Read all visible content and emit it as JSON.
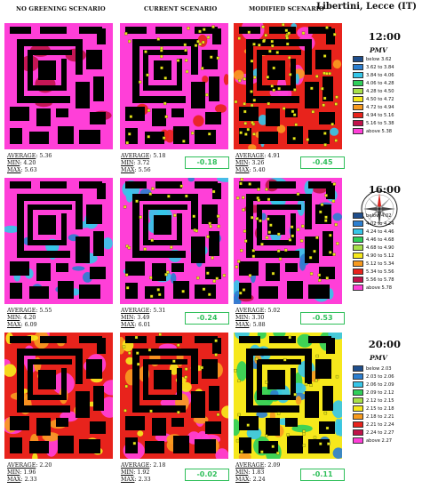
{
  "header": {
    "site": "Libertini, Lecce (IT)",
    "columns": [
      "NO GREENING SCENARIO",
      "CURRENT SCENARIO",
      "MODIFIED SCENARIO"
    ]
  },
  "labels": {
    "average": "AVERAGE",
    "min": "MIN",
    "max": "MAX",
    "pmv": "PMV"
  },
  "rows": [
    {
      "time": "12:00",
      "panels": [
        {
          "average": "5.36",
          "min": "4.20",
          "max": "5.63"
        },
        {
          "average": "5.18",
          "min": "3.72",
          "max": "5.56",
          "delta": "-0.18"
        },
        {
          "average": "4.91",
          "min": "3.26",
          "max": "5.40",
          "delta": "-0.45"
        }
      ],
      "legend": [
        {
          "label": "below 3.62",
          "color": "#1f4e8c"
        },
        {
          "label": "3.62 to 3.84",
          "color": "#2c7fd0"
        },
        {
          "label": "3.84 to 4.06",
          "color": "#36c6e8"
        },
        {
          "label": "4.06 to 4.28",
          "color": "#2fcf5a"
        },
        {
          "label": "4.28 to 4.50",
          "color": "#a8e04a"
        },
        {
          "label": "4.50 to 4.72",
          "color": "#f6e81c"
        },
        {
          "label": "4.72 to 4.94",
          "color": "#f79a1f"
        },
        {
          "label": "4.94 to 5.16",
          "color": "#e8231c"
        },
        {
          "label": "5.16 to 5.38",
          "color": "#c0124a"
        },
        {
          "label": "above 5.38",
          "color": "#ff3fd8"
        }
      ]
    },
    {
      "time": "16:00",
      "panels": [
        {
          "average": "5.55",
          "min": "4.20",
          "max": "6.09"
        },
        {
          "average": "5.31",
          "min": "3.49",
          "max": "6.01",
          "delta": "-0.24"
        },
        {
          "average": "5.02",
          "min": "3.30",
          "max": "5.88",
          "delta": "-0.53"
        }
      ],
      "legend": [
        {
          "label": "below 4.02",
          "color": "#1f4e8c"
        },
        {
          "label": "4.02 to 4.24",
          "color": "#2c7fd0"
        },
        {
          "label": "4.24 to 4.46",
          "color": "#36c6e8"
        },
        {
          "label": "4.46 to 4.68",
          "color": "#2fcf5a"
        },
        {
          "label": "4.68 to 4.90",
          "color": "#a8e04a"
        },
        {
          "label": "4.90 to 5.12",
          "color": "#f6e81c"
        },
        {
          "label": "5.12 to 5.34",
          "color": "#f79a1f"
        },
        {
          "label": "5.34 to 5.56",
          "color": "#e8231c"
        },
        {
          "label": "5.56 to 5.78",
          "color": "#c0124a"
        },
        {
          "label": "above 5.78",
          "color": "#ff3fd8"
        }
      ]
    },
    {
      "time": "20:00",
      "panels": [
        {
          "average": "2.20",
          "min": "1.96",
          "max": "2.33"
        },
        {
          "average": "2.18",
          "min": "1.92",
          "max": "2.33",
          "delta": "-0.02"
        },
        {
          "average": "2.09",
          "min": "1.83",
          "max": "2.24",
          "delta": "-0.11"
        }
      ],
      "legend": [
        {
          "label": "below 2.03",
          "color": "#1f4e8c"
        },
        {
          "label": "2.03 to 2.06",
          "color": "#2c7fd0"
        },
        {
          "label": "2.06 to 2.09",
          "color": "#36c6e8"
        },
        {
          "label": "2.09 to 2.12",
          "color": "#2fcf5a"
        },
        {
          "label": "2.12 to 2.15",
          "color": "#a8e04a"
        },
        {
          "label": "2.15 to 2.18",
          "color": "#f6e81c"
        },
        {
          "label": "2.18 to 2.21",
          "color": "#f79a1f"
        },
        {
          "label": "2.21 to 2.24",
          "color": "#e8231c"
        },
        {
          "label": "2.24 to 2.27",
          "color": "#c0124a"
        },
        {
          "label": "above 2.27",
          "color": "#ff3fd8"
        }
      ]
    }
  ],
  "colors": {
    "building": "#000000",
    "vegetation": "#e8e81a",
    "delta_border": "#2fbf5a"
  },
  "icons": {
    "compass": "compass-rose-icon"
  }
}
